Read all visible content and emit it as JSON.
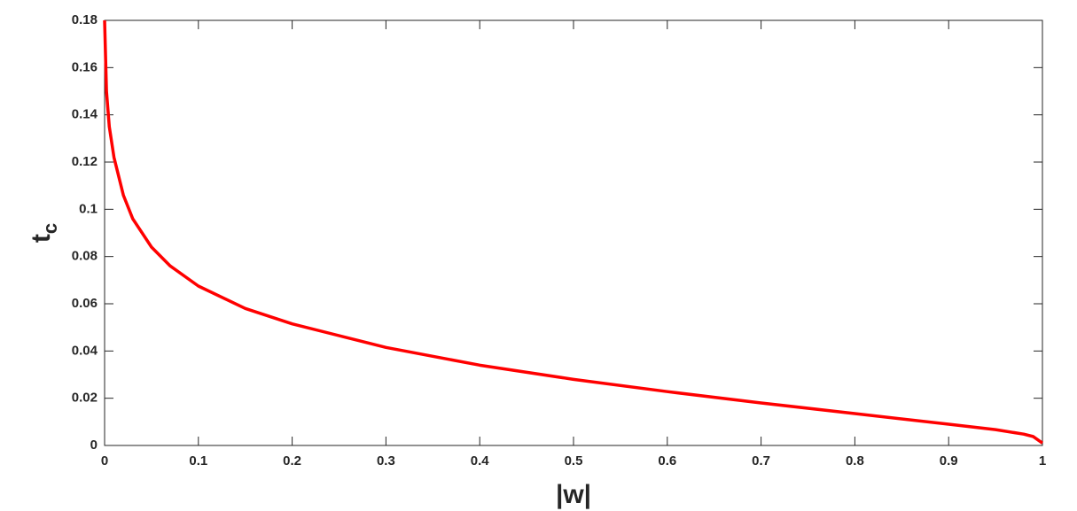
{
  "chart_data": {
    "type": "line",
    "xlabel": "|w|",
    "ylabel": "t",
    "ylabel_subscript": "c",
    "x": [
      0,
      0.002,
      0.005,
      0.01,
      0.02,
      0.03,
      0.05,
      0.07,
      0.1,
      0.15,
      0.2,
      0.3,
      0.4,
      0.5,
      0.6,
      0.7,
      0.8,
      0.9,
      0.95,
      0.98,
      0.99,
      1
    ],
    "series": [
      {
        "color": "#ff0000",
        "values": [
          0.18,
          0.15,
          0.135,
          0.122,
          0.106,
          0.096,
          0.084,
          0.076,
          0.0675,
          0.058,
          0.0515,
          0.0415,
          0.034,
          0.028,
          0.0228,
          0.018,
          0.0135,
          0.009,
          0.0067,
          0.0048,
          0.0038,
          0.001
        ]
      }
    ],
    "xlim": [
      0,
      1
    ],
    "xticks": [
      0,
      0.1,
      0.2,
      0.3,
      0.4,
      0.5,
      0.6,
      0.7,
      0.8,
      0.9,
      1
    ],
    "ylim": [
      0,
      0.18
    ],
    "yticks": [
      0,
      0.02,
      0.04,
      0.06,
      0.08,
      0.1,
      0.12,
      0.14,
      0.16,
      0.18
    ],
    "grid": false
  }
}
